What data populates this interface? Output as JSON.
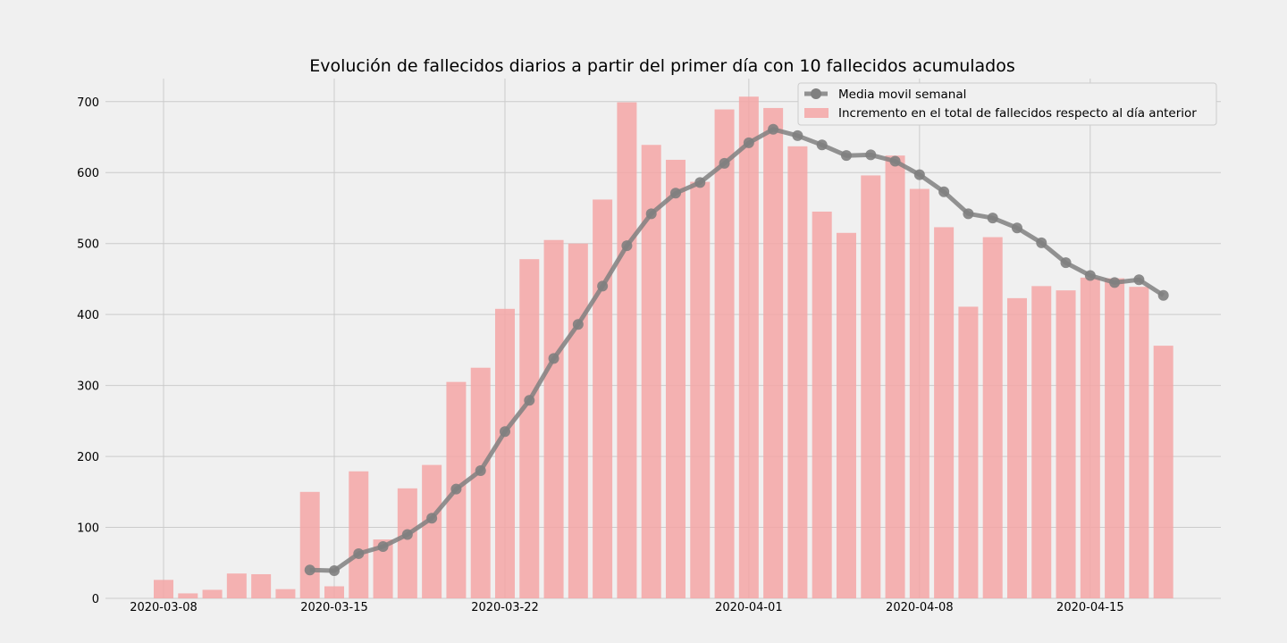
{
  "chart_data": {
    "type": "bar",
    "title": "Evolución de fallecidos diarios a partir del primer día con 10 fallecidos acumulados",
    "xlabel": "",
    "ylabel": "",
    "x_start": "2020-03-08",
    "ylim": [
      0,
      740
    ],
    "yticks": [
      0,
      100,
      200,
      300,
      400,
      500,
      600,
      700
    ],
    "xticks": [
      {
        "label": "2020-03-08",
        "pos": 0
      },
      {
        "label": "2020-03-15",
        "pos": 7
      },
      {
        "label": "2020-03-22",
        "pos": 14
      },
      {
        "label": "2020-04-01",
        "pos": 24
      },
      {
        "label": "2020-04-08",
        "pos": 31
      },
      {
        "label": "2020-04-15",
        "pos": 38
      }
    ],
    "grid": true,
    "legend_placement": "top-right",
    "colors": {
      "bars": "#f4a6a6",
      "line": "#808080",
      "background": "#f0f0f0",
      "grid": "#cbcbcb"
    },
    "series": [
      {
        "name": "Incremento en el total de fallecidos respecto al día anterior",
        "type": "bar",
        "values": [
          26,
          7,
          12,
          35,
          34,
          13,
          150,
          17,
          179,
          83,
          155,
          188,
          305,
          325,
          408,
          478,
          505,
          500,
          562,
          699,
          639,
          618,
          587,
          689,
          707,
          691,
          637,
          545,
          515,
          596,
          624,
          577,
          523,
          411,
          509,
          423,
          440,
          434,
          452,
          451,
          439,
          356
        ]
      },
      {
        "name": "Media movil semanal",
        "type": "line",
        "values": [
          null,
          null,
          null,
          null,
          null,
          null,
          40,
          39,
          63,
          73,
          90,
          113,
          154,
          180,
          235,
          279,
          338,
          386,
          440,
          497,
          542,
          571,
          586,
          613,
          642,
          661,
          652,
          639,
          624,
          625,
          616,
          597,
          573,
          542,
          536,
          522,
          501,
          473,
          455,
          445,
          449,
          427
        ]
      }
    ]
  }
}
